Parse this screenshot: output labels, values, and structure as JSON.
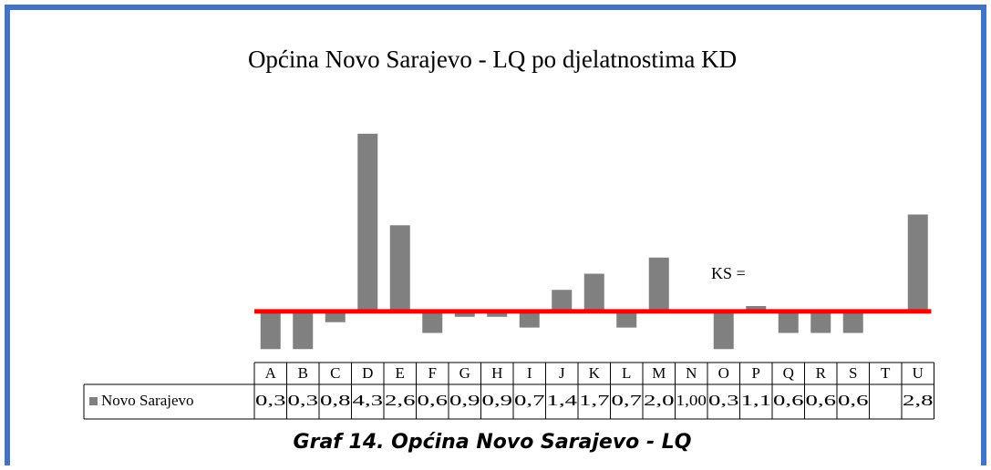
{
  "chart_data": {
    "type": "bar",
    "title": "Općina Novo Sarajevo - LQ po djelatnostima KD",
    "caption": "Graf 14. Općina Novo Sarajevo - LQ",
    "categories": [
      "A",
      "B",
      "C",
      "D",
      "E",
      "F",
      "G",
      "H",
      "I",
      "J",
      "K",
      "L",
      "M",
      "N",
      "O",
      "P",
      "Q",
      "R",
      "S",
      "T",
      "U"
    ],
    "series": [
      {
        "name": "Novo Sarajevo",
        "color": "#808080",
        "values": [
          0.3,
          0.3,
          0.8,
          4.3,
          2.6,
          0.6,
          0.9,
          0.9,
          0.7,
          1.4,
          1.7,
          0.7,
          2.0,
          1.0,
          0.3,
          1.1,
          0.6,
          0.6,
          0.6,
          null,
          2.8
        ],
        "value_labels": [
          "0,3",
          "0,3",
          "0,8",
          "4,3",
          "2,6",
          "0,6",
          "0,9",
          "0,9",
          "0,7",
          "1,4",
          "1,7",
          "0,7",
          "2,0",
          "1,00",
          "0,3",
          "1,1",
          "0,6",
          "0,6",
          "0,6",
          null,
          "2,8"
        ]
      }
    ],
    "reference_line": {
      "value": 1,
      "label": "KS =",
      "color": "#ff0000"
    },
    "ylim": [
      0,
      4.5
    ]
  }
}
